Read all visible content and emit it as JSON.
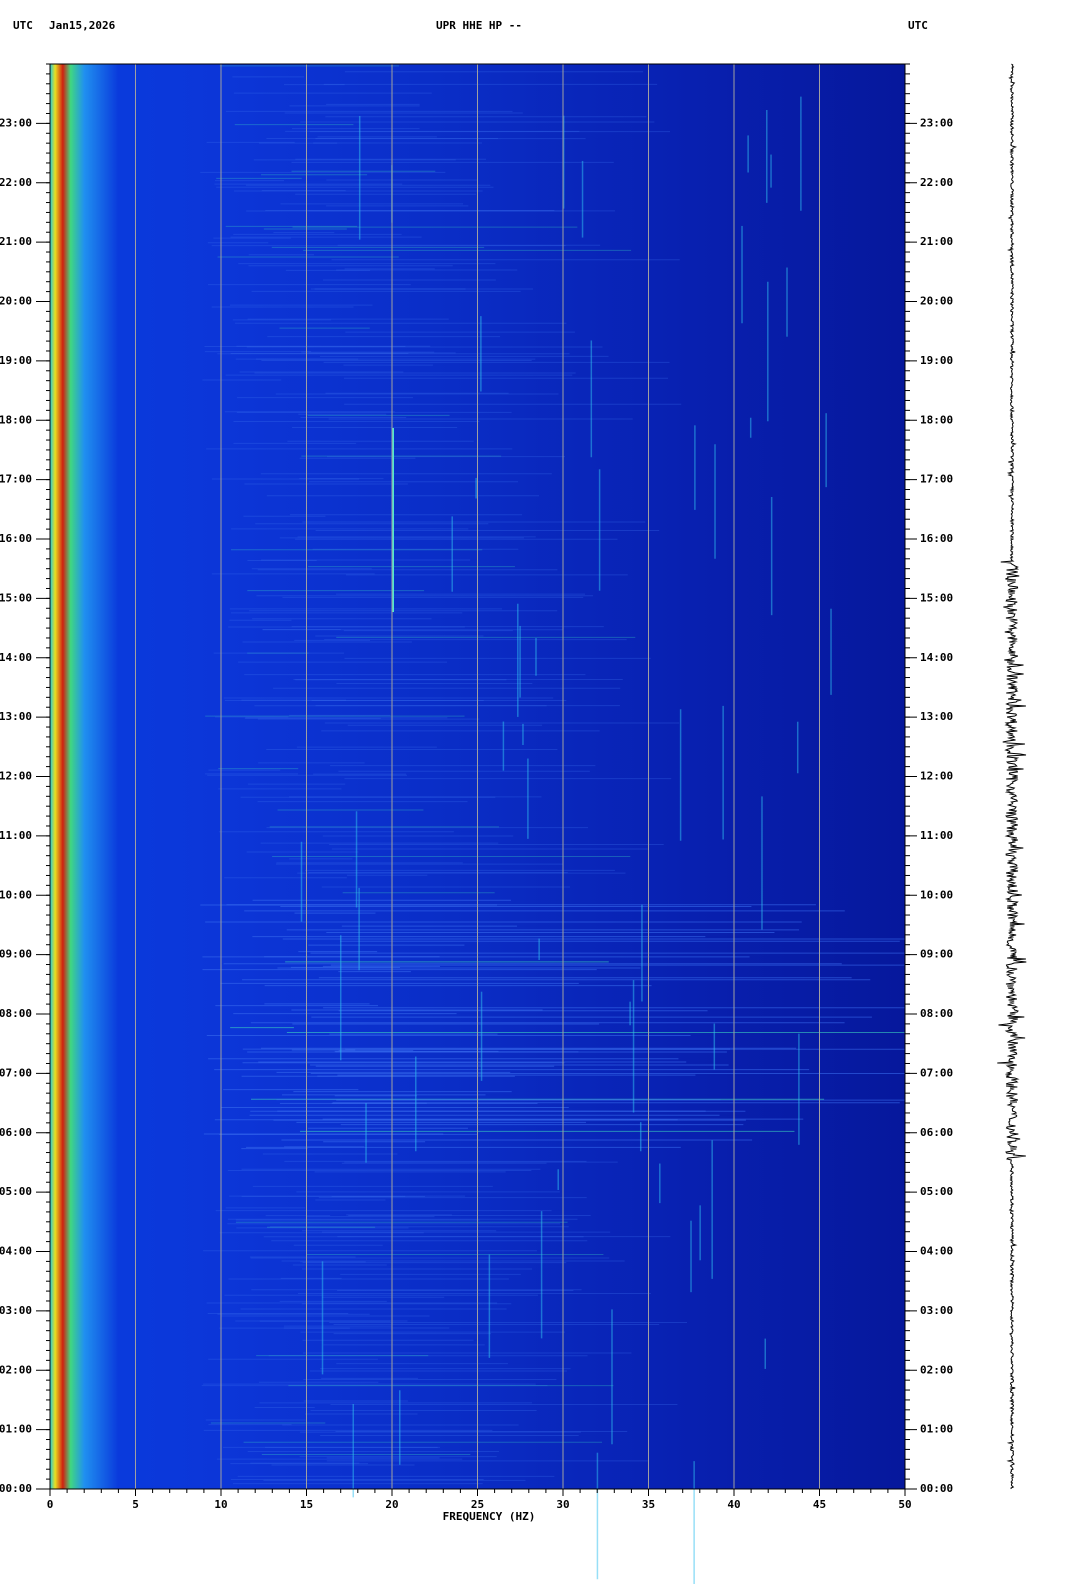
{
  "chart_data": {
    "type": "spectrogram",
    "title": "UPR HHE HP --",
    "timezone_left": "UTC",
    "date": "Jan15,2026",
    "timezone_right": "UTC",
    "x_label": "FREQUENCY (HZ)",
    "xlim": [
      0,
      50
    ],
    "xticks": [
      0,
      5,
      10,
      15,
      20,
      25,
      30,
      35,
      40,
      45,
      50
    ],
    "ylim": [
      0,
      24
    ],
    "yticks": [
      {
        "value": 0,
        "label": "00:00"
      },
      {
        "value": 1,
        "label": "01:00"
      },
      {
        "value": 2,
        "label": "02:00"
      },
      {
        "value": 3,
        "label": "03:00"
      },
      {
        "value": 4,
        "label": "04:00"
      },
      {
        "value": 5,
        "label": "05:00"
      },
      {
        "value": 6,
        "label": "06:00"
      },
      {
        "value": 7,
        "label": "07:00"
      },
      {
        "value": 8,
        "label": "08:00"
      },
      {
        "value": 9,
        "label": "09:00"
      },
      {
        "value": 10,
        "label": "10:00"
      },
      {
        "value": 11,
        "label": "11:00"
      },
      {
        "value": 12,
        "label": "12:00"
      },
      {
        "value": 13,
        "label": "13:00"
      },
      {
        "value": 14,
        "label": "14:00"
      },
      {
        "value": 15,
        "label": "15:00"
      },
      {
        "value": 16,
        "label": "16:00"
      },
      {
        "value": 17,
        "label": "17:00"
      },
      {
        "value": 18,
        "label": "18:00"
      },
      {
        "value": 19,
        "label": "19:00"
      },
      {
        "value": 20,
        "label": "20:00"
      },
      {
        "value": 21,
        "label": "21:00"
      },
      {
        "value": 22,
        "label": "22:00"
      },
      {
        "value": 23,
        "label": "23:00"
      }
    ],
    "grid": true
  }
}
